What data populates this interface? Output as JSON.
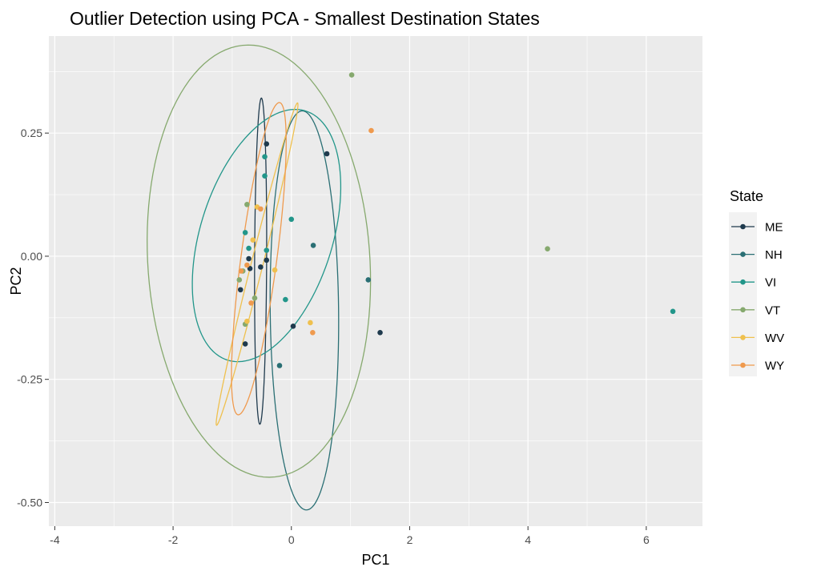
{
  "chart_data": {
    "type": "scatter",
    "title": "Outlier Detection using PCA - Smallest Destination States",
    "xlabel": "PC1",
    "ylabel": "PC2",
    "xlim": [
      -4.1,
      6.95
    ],
    "ylim": [
      -0.548,
      0.447
    ],
    "x_ticks": [
      {
        "value": -4,
        "label": "-4"
      },
      {
        "value": -2,
        "label": "-2"
      },
      {
        "value": 0,
        "label": "0"
      },
      {
        "value": 2,
        "label": "2"
      },
      {
        "value": 4,
        "label": "4"
      },
      {
        "value": 6,
        "label": "6"
      }
    ],
    "y_ticks": [
      {
        "value": -0.5,
        "label": "-0.50"
      },
      {
        "value": -0.25,
        "label": "-0.25"
      },
      {
        "value": 0,
        "label": "0.00"
      },
      {
        "value": 0.25,
        "label": "0.25"
      }
    ],
    "grid": true,
    "panel_background": "#ebebeb",
    "legend": {
      "title": "State",
      "position": "right",
      "entries": [
        "ME",
        "NH",
        "VI",
        "VT",
        "WV",
        "WY"
      ]
    },
    "series": [
      {
        "name": "ME",
        "color": "#1f3a4d",
        "points": [
          [
            -0.42,
            0.228
          ],
          [
            0.6,
            0.208
          ],
          [
            -0.72,
            -0.005
          ],
          [
            -0.7,
            -0.025
          ],
          [
            -0.52,
            -0.022
          ],
          [
            -0.42,
            -0.008
          ],
          [
            -0.86,
            -0.068
          ],
          [
            -0.78,
            -0.178
          ],
          [
            0.03,
            -0.142
          ],
          [
            1.5,
            -0.155
          ]
        ],
        "ellipse": {
          "cx": -0.52,
          "cy": -0.01,
          "rx": 0.6,
          "rtheta": 1.4,
          "ax": -0.008,
          "ay": 0.324
        }
      },
      {
        "name": "NH",
        "color": "#2a6f74",
        "points": [
          [
            0.37,
            0.022
          ],
          [
            1.3,
            -0.048
          ],
          [
            -0.2,
            -0.222
          ]
        ],
        "ellipse": {
          "cx": 0.22,
          "cy": -0.11,
          "rx": 1.1,
          "rtheta": 1.05,
          "ax": -0.19,
          "ay": 0.39
        }
      },
      {
        "name": "VI",
        "color": "#22968a",
        "points": [
          [
            -0.45,
            0.202
          ],
          [
            -0.45,
            0.163
          ],
          [
            0.0,
            0.075
          ],
          [
            -0.78,
            0.048
          ],
          [
            -0.72,
            0.016
          ],
          [
            -0.42,
            0.012
          ],
          [
            -0.1,
            -0.088
          ],
          [
            6.45,
            -0.112
          ]
        ],
        "ellipse": {
          "cx": -0.42,
          "cy": 0.042,
          "rx": 1.5,
          "rtheta": 0.58,
          "ax": 0.023,
          "ay": 0.238
        }
      },
      {
        "name": "VT",
        "color": "#86a96e",
        "points": [
          [
            1.02,
            0.368
          ],
          [
            -0.75,
            0.105
          ],
          [
            4.33,
            0.015
          ],
          [
            -0.88,
            -0.048
          ],
          [
            -0.82,
            -0.03
          ],
          [
            -0.62,
            -0.085
          ],
          [
            -0.78,
            -0.138
          ]
        ],
        "ellipse": {
          "cx": -0.55,
          "cy": -0.01,
          "rx": 2.1,
          "rtheta": 0.6,
          "ax": -0.75,
          "ay": 0.417
        }
      },
      {
        "name": "WV",
        "color": "#efc04e",
        "points": [
          [
            -0.65,
            0.033
          ],
          [
            -0.28,
            -0.028
          ],
          [
            -0.75,
            -0.132
          ],
          [
            0.32,
            -0.135
          ],
          [
            -0.58,
            0.1
          ]
        ],
        "ellipse": {
          "cx": -0.58,
          "cy": -0.016,
          "rx": 0.72,
          "rtheta": 1.2,
          "ax": 0.64,
          "ay": 0.318
        }
      },
      {
        "name": "WY",
        "color": "#ef9a4e",
        "points": [
          [
            1.35,
            0.255
          ],
          [
            -0.52,
            0.096
          ],
          [
            -0.85,
            -0.03
          ],
          [
            -0.75,
            -0.018
          ],
          [
            -0.68,
            -0.095
          ],
          [
            0.36,
            -0.155
          ]
        ],
        "ellipse": {
          "cx": -0.55,
          "cy": -0.005,
          "rx": 1.15,
          "rtheta": 1.2,
          "ax": 0.2,
          "ay": 0.292
        }
      }
    ]
  }
}
